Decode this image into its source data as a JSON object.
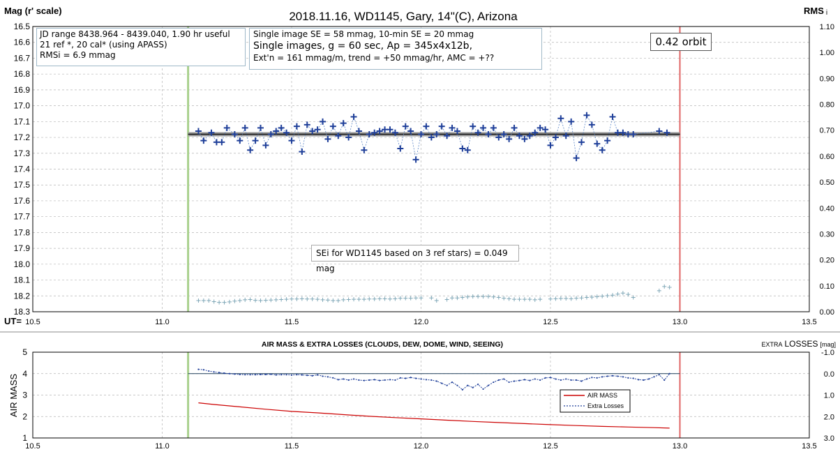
{
  "chart_data": [
    {
      "type": "scatter",
      "title": "2018.11.16, WD1145, Gary, 14\"(C), Arizona",
      "ylabel": "Mag (r' scale)",
      "y2label_main": "RMS",
      "y2label_sub": "i",
      "xlabel": "UT=",
      "xlim": [
        10.5,
        13.5
      ],
      "ylim": [
        16.5,
        18.3
      ],
      "y2lim": [
        0.0,
        1.1
      ],
      "y_inverted": true,
      "xticks": [
        "10.5",
        "11.0",
        "11.5",
        "12.0",
        "12.5",
        "13.0",
        "13.5"
      ],
      "yticks": [
        "16.5",
        "16.6",
        "16.7",
        "16.8",
        "16.9",
        "17.0",
        "17.1",
        "17.2",
        "17.3",
        "17.4",
        "17.5",
        "17.6",
        "17.7",
        "17.8",
        "17.9",
        "18.0",
        "18.1",
        "18.2",
        "18.3"
      ],
      "y2ticks": [
        "0.00",
        "0.10",
        "0.20",
        "0.30",
        "0.40",
        "0.50",
        "0.60",
        "0.70",
        "0.80",
        "0.90",
        "1.00",
        "1.10"
      ],
      "grid": true,
      "markers": {
        "start_ut": 11.1,
        "end_ut": 13.0,
        "start_color": "#a9d18e",
        "end_color": "#e06666"
      },
      "fit_line": {
        "mag": 17.18,
        "x_start": 11.1,
        "x_end": 13.0
      },
      "series": [
        {
          "color": "#1f3f99",
          "x": [
            11.14,
            11.16,
            11.19,
            11.21,
            11.23,
            11.25,
            11.28,
            11.3,
            11.32,
            11.34,
            11.36,
            11.38,
            11.4,
            11.42,
            11.44,
            11.46,
            11.48,
            11.5,
            11.52,
            11.54,
            11.56,
            11.58,
            11.6,
            11.62,
            11.64,
            11.66,
            11.68,
            11.7,
            11.72,
            11.74,
            11.76,
            11.78,
            11.8,
            11.82,
            11.84,
            11.86,
            11.88,
            11.9,
            11.92,
            11.94,
            11.96,
            11.98,
            12.0,
            12.02,
            12.04,
            12.06,
            12.08,
            12.1,
            12.12,
            12.14,
            12.16,
            12.18,
            12.2,
            12.22,
            12.24,
            12.26,
            12.28,
            12.3,
            12.32,
            12.34,
            12.36,
            12.38,
            12.4,
            12.42,
            12.44,
            12.46,
            12.48,
            12.5,
            12.52,
            12.54,
            12.56,
            12.58,
            12.6,
            12.62,
            12.64,
            12.66,
            12.68,
            12.7,
            12.72,
            12.74,
            12.76,
            12.78,
            12.8,
            12.82,
            12.92,
            12.95
          ],
          "y": [
            17.16,
            17.22,
            17.17,
            17.23,
            17.23,
            17.14,
            17.18,
            17.22,
            17.14,
            17.28,
            17.22,
            17.14,
            17.25,
            17.18,
            17.16,
            17.14,
            17.17,
            17.22,
            17.13,
            17.29,
            17.12,
            17.16,
            17.15,
            17.1,
            17.21,
            17.13,
            17.19,
            17.11,
            17.2,
            17.07,
            17.16,
            17.28,
            17.18,
            17.17,
            17.16,
            17.15,
            17.15,
            17.17,
            17.27,
            17.13,
            17.16,
            17.34,
            17.18,
            17.13,
            17.2,
            17.18,
            17.13,
            17.19,
            17.14,
            17.16,
            17.27,
            17.28,
            17.13,
            17.17,
            17.14,
            17.18,
            17.14,
            17.2,
            17.18,
            17.21,
            17.14,
            17.19,
            17.21,
            17.19,
            17.17,
            17.14,
            17.15,
            17.25,
            17.2,
            17.08,
            17.19,
            17.1,
            17.33,
            17.23,
            17.06,
            17.12,
            17.24,
            17.28,
            17.22,
            17.07,
            17.17,
            17.17,
            17.18,
            17.18,
            17.16,
            17.17
          ]
        },
        {
          "color": "#7fa7b7",
          "x": [
            11.14,
            11.16,
            11.18,
            11.2,
            11.22,
            11.24,
            11.26,
            11.28,
            11.3,
            11.32,
            11.34,
            11.36,
            11.38,
            11.4,
            11.42,
            11.44,
            11.46,
            11.48,
            11.5,
            11.52,
            11.54,
            11.56,
            11.58,
            11.6,
            11.62,
            11.64,
            11.66,
            11.68,
            11.7,
            11.72,
            11.74,
            11.76,
            11.78,
            11.8,
            11.82,
            11.84,
            11.86,
            11.88,
            11.9,
            11.92,
            11.94,
            11.96,
            11.98,
            12.0,
            12.04,
            12.06,
            12.1,
            12.12,
            12.14,
            12.16,
            12.18,
            12.2,
            12.22,
            12.24,
            12.26,
            12.28,
            12.3,
            12.32,
            12.34,
            12.36,
            12.38,
            12.4,
            12.42,
            12.44,
            12.46,
            12.5,
            12.52,
            12.54,
            12.56,
            12.58,
            12.6,
            12.62,
            12.64,
            12.66,
            12.68,
            12.7,
            12.72,
            12.74,
            12.76,
            12.78,
            12.8,
            12.82,
            12.92,
            12.94,
            12.96
          ],
          "y": [
            0.043,
            0.043,
            0.043,
            0.039,
            0.036,
            0.036,
            0.038,
            0.041,
            0.043,
            0.046,
            0.047,
            0.044,
            0.043,
            0.044,
            0.045,
            0.046,
            0.047,
            0.048,
            0.049,
            0.049,
            0.05,
            0.049,
            0.049,
            0.048,
            0.046,
            0.045,
            0.043,
            0.043,
            0.046,
            0.047,
            0.048,
            0.048,
            0.048,
            0.049,
            0.049,
            0.05,
            0.05,
            0.049,
            0.05,
            0.052,
            0.052,
            0.052,
            0.053,
            0.053,
            0.053,
            0.043,
            0.047,
            0.053,
            0.053,
            0.055,
            0.057,
            0.059,
            0.059,
            0.059,
            0.059,
            0.057,
            0.055,
            0.052,
            0.05,
            0.048,
            0.048,
            0.048,
            0.048,
            0.046,
            0.048,
            0.049,
            0.05,
            0.051,
            0.051,
            0.05,
            0.052,
            0.053,
            0.055,
            0.056,
            0.058,
            0.06,
            0.062,
            0.064,
            0.068,
            0.072,
            0.067,
            0.055,
            0.081,
            0.097,
            0.094
          ]
        }
      ],
      "annotations": {
        "info_left": [
          "JD range 8438.964 - 8439.040, 1.90 hr useful",
          "21 ref *, 20 cal* (using APASS)",
          "RMSi = 6.9 mmag"
        ],
        "info_mid": [
          "Single image SE = 58 mmag, 10-min SE = 20 mmag",
          "Single images, g = 60 sec, Ap = 345x4x12b,",
          "Ext'n = 161 mmag/m, trend = +50 mmag/hr, AMC = +??"
        ],
        "orbit": "0.42 orbit",
        "sei": "SEi for WD1145 based on 3 ref stars) = 0.049 mag"
      }
    },
    {
      "type": "line",
      "title": "AIR MASS & EXTRA LOSSES (CLOUDS, DEW, DOME, WIND, SEEING)",
      "ylabel": "AIR MASS",
      "y2label": "EXTRA LOSSES [mag]",
      "y2label_big": "LOSSES",
      "y2label_pre": "EXTRA",
      "y2label_post": "[mag]",
      "xlim": [
        10.5,
        13.5
      ],
      "ylim": [
        1,
        5
      ],
      "y2lim": [
        -1.0,
        3.0
      ],
      "y2_inverted": true,
      "xticks": [
        "10.5",
        "11.0",
        "11.5",
        "12.0",
        "12.5",
        "13.0",
        "13.5"
      ],
      "yticks": [
        "1",
        "2",
        "3",
        "4",
        "5"
      ],
      "y2ticks": [
        "-1.0",
        "0.0",
        "1.0",
        "2.0",
        "3.0"
      ],
      "grid": true,
      "legend": {
        "placement": "center-right",
        "items": [
          "AIR MASS",
          "Extra Losses"
        ]
      },
      "series": [
        {
          "name": "AIR MASS",
          "color": "#cc0000",
          "x": [
            11.14,
            11.2,
            11.3,
            11.4,
            11.5,
            11.6,
            11.7,
            11.8,
            11.9,
            12.0,
            12.1,
            12.2,
            12.3,
            12.4,
            12.5,
            12.6,
            12.7,
            12.8,
            12.9,
            12.96
          ],
          "y": [
            2.64,
            2.56,
            2.45,
            2.34,
            2.24,
            2.17,
            2.09,
            2.01,
            1.95,
            1.89,
            1.83,
            1.77,
            1.72,
            1.67,
            1.62,
            1.58,
            1.54,
            1.51,
            1.48,
            1.46
          ]
        },
        {
          "name": "Extra Losses",
          "color": "#1f3f99",
          "x": [
            11.14,
            11.16,
            11.18,
            11.2,
            11.22,
            11.24,
            11.26,
            11.28,
            11.3,
            11.32,
            11.34,
            11.36,
            11.38,
            11.4,
            11.42,
            11.44,
            11.46,
            11.48,
            11.5,
            11.52,
            11.54,
            11.56,
            11.58,
            11.6,
            11.62,
            11.64,
            11.66,
            11.68,
            11.7,
            11.72,
            11.74,
            11.76,
            11.78,
            11.8,
            11.82,
            11.84,
            11.86,
            11.88,
            11.9,
            11.92,
            11.94,
            11.96,
            11.98,
            12.0,
            12.02,
            12.04,
            12.06,
            12.08,
            12.1,
            12.12,
            12.14,
            12.16,
            12.18,
            12.2,
            12.22,
            12.24,
            12.26,
            12.28,
            12.3,
            12.32,
            12.34,
            12.36,
            12.38,
            12.4,
            12.42,
            12.44,
            12.46,
            12.48,
            12.5,
            12.52,
            12.54,
            12.56,
            12.58,
            12.6,
            12.62,
            12.64,
            12.66,
            12.68,
            12.7,
            12.72,
            12.74,
            12.76,
            12.78,
            12.8,
            12.82,
            12.84,
            12.86,
            12.88,
            12.9,
            12.92,
            12.94,
            12.96
          ],
          "y": [
            -0.2,
            -0.18,
            -0.12,
            -0.08,
            -0.05,
            -0.02,
            0.0,
            0.02,
            0.04,
            0.05,
            0.05,
            0.05,
            0.04,
            0.04,
            0.03,
            0.06,
            0.05,
            0.05,
            0.07,
            0.05,
            0.06,
            0.08,
            0.1,
            0.06,
            0.12,
            0.15,
            0.2,
            0.28,
            0.25,
            0.3,
            0.25,
            0.3,
            0.32,
            0.3,
            0.28,
            0.32,
            0.3,
            0.28,
            0.3,
            0.2,
            0.22,
            0.18,
            0.22,
            0.25,
            0.28,
            0.3,
            0.35,
            0.45,
            0.55,
            0.4,
            0.55,
            0.75,
            0.55,
            0.65,
            0.5,
            0.72,
            0.55,
            0.4,
            0.3,
            0.25,
            0.4,
            0.35,
            0.32,
            0.28,
            0.32,
            0.25,
            0.3,
            0.2,
            0.18,
            0.25,
            0.3,
            0.25,
            0.3,
            0.3,
            0.35,
            0.25,
            0.18,
            0.2,
            0.15,
            0.12,
            0.1,
            0.12,
            0.15,
            0.2,
            0.22,
            0.28,
            0.3,
            0.25,
            0.15,
            0.05,
            0.3,
            0.0
          ]
        }
      ]
    }
  ]
}
